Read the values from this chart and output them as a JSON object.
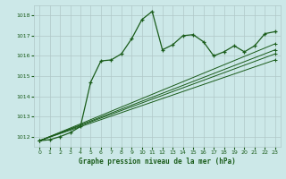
{
  "title": "Graphe pression niveau de la mer (hPa)",
  "bg_color": "#cce8e8",
  "grid_color": "#b0c8c8",
  "line_color": "#1a5c1a",
  "xlim": [
    -0.5,
    23.5
  ],
  "ylim": [
    1011.5,
    1018.5
  ],
  "yticks": [
    1012,
    1013,
    1014,
    1015,
    1016,
    1017,
    1018
  ],
  "xticks": [
    0,
    1,
    2,
    3,
    4,
    5,
    6,
    7,
    8,
    9,
    10,
    11,
    12,
    13,
    14,
    15,
    16,
    17,
    18,
    19,
    20,
    21,
    22,
    23
  ],
  "series1": [
    1011.8,
    1011.85,
    1012.0,
    1012.2,
    1012.5,
    1014.7,
    1015.75,
    1015.8,
    1016.1,
    1016.85,
    1017.8,
    1018.2,
    1016.3,
    1016.55,
    1017.0,
    1017.05,
    1016.7,
    1016.0,
    1016.2,
    1016.5,
    1016.2,
    1016.5,
    1017.1,
    1017.2
  ],
  "trend1_x": [
    0,
    23
  ],
  "trend1_y": [
    1011.8,
    1016.1
  ],
  "trend2_x": [
    0,
    23
  ],
  "trend2_y": [
    1011.8,
    1015.8
  ],
  "trend3_x": [
    0,
    23
  ],
  "trend3_y": [
    1011.8,
    1016.3
  ],
  "trend4_x": [
    0,
    23
  ],
  "trend4_y": [
    1011.8,
    1016.6
  ]
}
